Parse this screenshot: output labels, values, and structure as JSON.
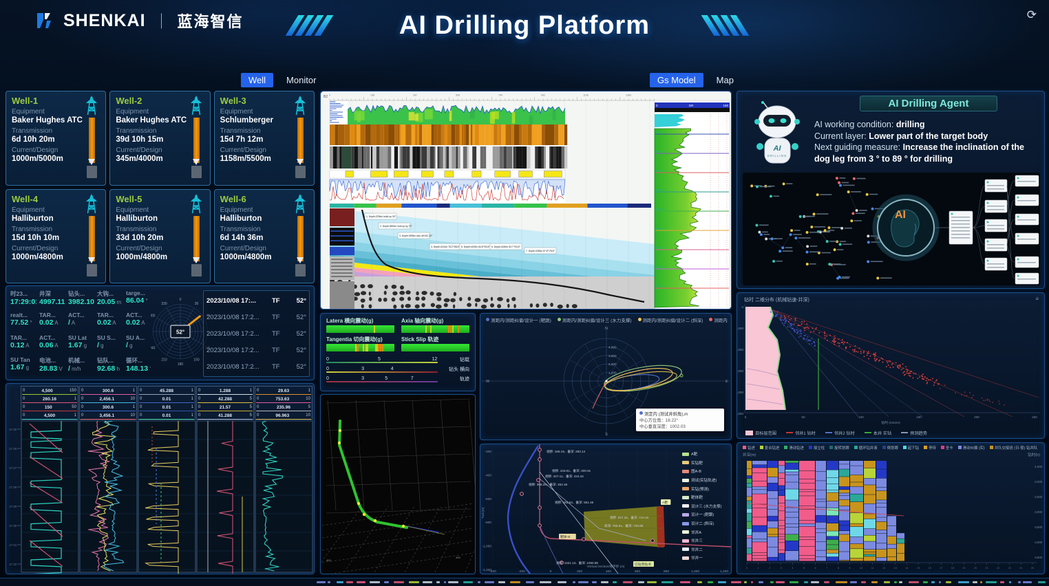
{
  "header": {
    "brand": "SHENKAI",
    "brand_cn": "蓝海智信",
    "title": "AI Drilling Platform",
    "refresh_glyph": "⟳"
  },
  "nav": {
    "left": [
      {
        "label": "Well",
        "active": true
      },
      {
        "label": "Monitor",
        "active": false
      }
    ],
    "right": [
      {
        "label": "Gs Model",
        "active": true
      },
      {
        "label": "Map",
        "active": false
      }
    ]
  },
  "well_labels": {
    "equipment": "Equipment",
    "transmission": "Transmission",
    "current_design": "Current/Design"
  },
  "wells": [
    {
      "name": "Well-1",
      "equipment": "Baker Hughes ATC",
      "transmission": "6d 10h 20m",
      "current_design": "1000m/5000m"
    },
    {
      "name": "Well-2",
      "equipment": "Baker Hughes ATC",
      "transmission": "39d 10h 15m",
      "current_design": "345m/4000m"
    },
    {
      "name": "Well-3",
      "equipment": "Schlumberger",
      "transmission": "15d 7h 12m",
      "current_design": "1158m/5500m"
    },
    {
      "name": "Well-4",
      "equipment": "Halliburton",
      "transmission": "15d 10h 10m",
      "current_design": "1000m/4800m"
    },
    {
      "name": "Well-5",
      "equipment": "Halliburton",
      "transmission": "33d 10h 20m",
      "current_design": "1000m/4800m"
    },
    {
      "name": "Well-6",
      "equipment": "Halliburton",
      "transmission": "6d 14h 36m",
      "current_design": "1000m/4800m"
    }
  ],
  "telemetry": {
    "rows": [
      [
        {
          "label": "时23...",
          "value": "17:29:01",
          "unit": ""
        },
        {
          "label": "井深",
          "value": "4997.11",
          "unit": ""
        },
        {
          "label": "钻头...",
          "value": "3982.10",
          "unit": ""
        },
        {
          "label": "大钩...",
          "value": "20.05",
          "unit": "m"
        },
        {
          "label": "targe...",
          "value": "86.04",
          "unit": "°"
        }
      ],
      [
        {
          "label": "realt...",
          "value": "77.52",
          "unit": "°"
        },
        {
          "label": "TAR...",
          "value": "0.02",
          "unit": "A"
        },
        {
          "label": "ACT...",
          "value": "/",
          "unit": "A"
        },
        {
          "label": "TAR...",
          "value": "0.02",
          "unit": "A"
        },
        {
          "label": "ACT...",
          "value": "0.02",
          "unit": "A"
        }
      ],
      [
        {
          "label": "TAR...",
          "value": "0.12",
          "unit": "A"
        },
        {
          "label": "ACT...",
          "value": "0.06",
          "unit": "A"
        },
        {
          "label": "SU Lat",
          "value": "1.67",
          "unit": "g"
        },
        {
          "label": "SU S...",
          "value": "/",
          "unit": "g"
        },
        {
          "label": "SU A...",
          "value": "/",
          "unit": "g"
        }
      ],
      [
        {
          "label": "SU Tan",
          "value": "1.67",
          "unit": "g"
        },
        {
          "label": "电池...",
          "value": "28.83",
          "unit": "V"
        },
        {
          "label": "机械...",
          "value": "/",
          "unit": "m/h"
        },
        {
          "label": "钻队...",
          "value": "92.68",
          "unit": "h"
        },
        {
          "label": "循环...",
          "value": "148.13",
          "unit": "'"
        }
      ]
    ]
  },
  "compass": {
    "value": "52°",
    "needle_deg": 52,
    "ticks": [
      "0",
      "30",
      "60",
      "90",
      "120",
      "150",
      "180",
      "210",
      "240",
      "270",
      "300",
      "330"
    ]
  },
  "tf_list": [
    {
      "time": "2023/10/08 17:...",
      "tf": "TF",
      "angle": "52°"
    },
    {
      "time": "2023/10/08 17:2...",
      "tf": "TF",
      "angle": "52°"
    },
    {
      "time": "2023/10/08 17:2...",
      "tf": "TF",
      "angle": "52°"
    },
    {
      "time": "2023/10/08 17:2...",
      "tf": "TF",
      "angle": "52°"
    },
    {
      "time": "2023/10/08 17:2...",
      "tf": "TF",
      "angle": "52°"
    }
  ],
  "vibration": {
    "bars": [
      {
        "label": "Latera 横向震动(g)",
        "ticks": 1
      },
      {
        "label": "Axia 轴向震动(g)",
        "ticks": 6
      },
      {
        "label": "Tangentia 切向震动(g)",
        "ticks": 14
      },
      {
        "label": "Stick Slip 轨迹",
        "ticks": 0
      }
    ],
    "scales": [
      {
        "ticks": [
          "0",
          "5",
          "12"
        ],
        "label": "钻铤",
        "grad": [
          "#1f8a5f",
          "#c8d13a"
        ]
      },
      {
        "ticks": [
          "0",
          "3",
          "4"
        ],
        "label": "钻头 横向",
        "grad": [
          "#c8d13a",
          "#8a1f2f"
        ]
      },
      {
        "ticks": [
          "0",
          "3",
          "5",
          "7"
        ],
        "label": "轨迹",
        "grad": [
          "#a03040",
          "#6a3a9a"
        ]
      }
    ]
  },
  "agent": {
    "title": "AI Drilling Agent",
    "robot_line1": "AI",
    "robot_line2": "DRILLING",
    "lines": [
      {
        "label": "AI working condition:",
        "value": "drilling"
      },
      {
        "label": "Current layer:",
        "value": "Lower part of the target body"
      },
      {
        "label": "Next guiding measure:",
        "value": "Increase the inclination of the dog leg from 3 ° to 89 ° for drilling"
      }
    ],
    "brain_label": "AI"
  },
  "geology": {
    "corner_label": "B2",
    "gr_header": "GR",
    "gr_min": "0",
    "gr_max": "150",
    "annotations": [
      "1. Depth:3756m build up 30°",
      "2. Depth:3833m hold up by 70°",
      "3. Depth:3935m kick off INC 22°",
      "4. Depth:4131m 78.2°/98.8°",
      "5. Depth:4192m 84.8°/93.8°",
      "6. Depth:4245m 83.7°/93.8°",
      "7. Depth:4335m 87.8°/78.8°"
    ],
    "tops": [
      {
        "label": "4117.17",
        "color": "#3a55b0"
      },
      {
        "label": "4205.17",
        "color": "#7a5fc0"
      },
      {
        "label": "4262.17",
        "color": "#d85f5f"
      },
      {
        "label": "4321.17",
        "color": "#2a9d8f"
      },
      {
        "label": "4388.17",
        "color": "#3fae4c"
      },
      {
        "label": "4446.17",
        "color": "#e0a030"
      },
      {
        "label": "4533.17",
        "color": "#d85f8f"
      },
      {
        "label": "4608.17",
        "color": "#c05fd8"
      },
      {
        "label": "4641.17",
        "color": "#e06060"
      }
    ]
  },
  "polar": {
    "legend": [
      {
        "color": "#5470c6",
        "label": "测距内/测距纠偏/设计一 (靶跟)"
      },
      {
        "color": "#91cc75",
        "label": "测距内/测距纠偏/设计三 (水力支撑)"
      },
      {
        "color": "#fac858",
        "label": "测距内/测距纠偏/设计二 (斜深)"
      },
      {
        "color": "#ee6666",
        "label": "测距内 ("
      }
    ],
    "radial_ticks": [
      "1,000",
      "2,000",
      "3,000",
      "4,000"
    ],
    "dirs": {
      "n": "N",
      "s": "S",
      "w": "W",
      "e": "E"
    },
    "tooltip": {
      "title": "测定内 (测试井斜角),m",
      "line1": "中心方位角：18.22°",
      "line2": "中心垂直深度：1002.03"
    }
  },
  "section": {
    "ylabel": "Tvd (m)",
    "xlabel": "Vertical Section/视平移 (m)",
    "yticks": [
      "-200",
      "-400",
      "-600",
      "-800",
      "-1,000",
      "-1,200"
    ],
    "xticks": [
      "-400",
      "-200",
      "0",
      "200",
      "400",
      "600",
      "800",
      "1,000",
      "1,200"
    ],
    "annotations": [
      "视移: 166.16、垂深: 283.14",
      "视移: 433.91、垂深: 400.91",
      "视移: 427.11、垂深: 424.44",
      "视移: 398.25、垂深: 452.46",
      "视移: 183.62、垂深: 551.46",
      "视移: 637.25、垂深: 710.10",
      "斜深: 755.51、垂深: 749.99",
      "视移: 1151.13、垂深: 1050.85"
    ],
    "badges": [
      "A靶",
      "靶体-B",
      "已钻完钻点"
    ],
    "legend": [
      {
        "color": "#b8e08c",
        "label": "A靶"
      },
      {
        "color": "#e8c87a",
        "label": "实钻靶"
      },
      {
        "color": "#e8897a",
        "label": "图A-B"
      },
      {
        "color": "#eef2e2",
        "label": "测试(实钻轨迹)"
      },
      {
        "color": "#f0a868",
        "label": "实钻(预测)"
      },
      {
        "color": "#d8e8c8",
        "label": "靶体靶"
      },
      {
        "color": "#f0f0f0",
        "label": "设计三 (水力支撑)"
      },
      {
        "color": "#b8a8e8",
        "label": "设计一 (靶跟)"
      },
      {
        "color": "#8898e8",
        "label": "设计二 (斜深)"
      },
      {
        "color": "#e8f0d8",
        "label": "邻井A"
      },
      {
        "color": "#f0b8d0",
        "label": "邻井三"
      },
      {
        "color": "#e8f0f8",
        "label": "邻井二"
      },
      {
        "color": "#f0d8d8",
        "label": "邻井一"
      }
    ]
  },
  "scatter": {
    "title": "钻时 二维分布 (机械钻速-井深)",
    "corner_glyph": "≡",
    "yticks": [
      "0",
      "-1,000",
      "-2,000",
      "-3,000",
      "-4,000",
      "-4,500"
    ],
    "xticks": [
      "0",
      "50",
      "100",
      "150",
      "200",
      "250"
    ],
    "xlabel": "钻时 (min/m)",
    "legend": [
      {
        "color": "#f8c6d4",
        "label": "目标层范围",
        "box": true
      },
      {
        "color": "#c23531",
        "label": "邻井1 钻时"
      },
      {
        "color": "#5470c6",
        "label": "邻井2 钻时"
      },
      {
        "color": "#3aa83a",
        "label": "本井 实钻"
      },
      {
        "color": "#8a94b8",
        "label": "预测趋势"
      }
    ]
  },
  "heatmap": {
    "left_label": "井深(m)",
    "right_label": "钻时(h)",
    "right_ticks": [
      "-1,500",
      "-2,000",
      "-2,500",
      "-3,000",
      "-3,500",
      "-4,000",
      "-4,500"
    ],
    "xtick_count": 26,
    "legend": [
      {
        "color": "#f25c8a",
        "label": "钻进"
      },
      {
        "color": "#b8d438",
        "label": "复合钻进"
      },
      {
        "color": "#2fae6c",
        "label": "滑动钻进"
      },
      {
        "color": "#2438c8",
        "label": "接立柱"
      },
      {
        "color": "#1f6a74",
        "label": "旋转划眼"
      },
      {
        "color": "#2aa898",
        "label": "循环钻井液"
      },
      {
        "color": "#27407f",
        "label": "倒划眼"
      },
      {
        "color": "#4fd8e8",
        "label": "起下钻"
      },
      {
        "color": "#d8a020",
        "label": "停待"
      },
      {
        "color": "#e8388a",
        "label": "坐卡"
      },
      {
        "color": "#7c8ae0",
        "label": "滑动纠偏 (实)"
      },
      {
        "color": "#c8941c",
        "label": "井队交接班 (日-夜)·钻井队"
      }
    ]
  },
  "logs": {
    "tracks": [
      {
        "rows": [
          {
            "color": "#9acd32",
            "min": "0",
            "mid": "4,500",
            "max": "150"
          },
          {
            "color": "#e05878",
            "min": "0",
            "mid": "260.16",
            "max": "1"
          },
          {
            "color": "#c23a3a",
            "min": "0",
            "mid": "150",
            "max": "50"
          },
          {
            "color": "#2ab5a5",
            "min": "0",
            "mid": "4,500",
            "max": "1"
          }
        ]
      },
      {
        "rows": [
          {
            "color": "#e060a0",
            "min": "0",
            "mid": "300.6",
            "max": "1"
          },
          {
            "color": "#45b8e8",
            "min": "0",
            "mid": "2,456.1",
            "max": "10"
          },
          {
            "color": "#3a68c8",
            "min": "0",
            "mid": "300.6",
            "max": "1"
          },
          {
            "color": "#d84848",
            "min": "0",
            "mid": "3,456.1",
            "max": "10"
          }
        ]
      },
      {
        "rows": [
          {
            "color": "#93a3b3",
            "min": "0",
            "mid": "45.288",
            "max": "1"
          },
          {
            "color": "#4565c5",
            "min": "0",
            "mid": "0.01",
            "max": "1"
          },
          {
            "color": "#2f55a5",
            "min": "0",
            "mid": "0.01",
            "max": "1"
          },
          {
            "color": "#35c085",
            "min": "0",
            "mid": "0.01",
            "max": "1"
          }
        ]
      },
      {
        "rows": [
          {
            "color": "#d5dde5",
            "min": "0",
            "mid": "1.288",
            "max": "1"
          },
          {
            "color": "#e0c040",
            "min": "0",
            "mid": "42.288",
            "max": "5"
          },
          {
            "color": "#c2ae2e",
            "min": "0",
            "mid": "21.57",
            "max": "5"
          },
          {
            "color": "#9aa2b2",
            "min": "0",
            "mid": "41.288",
            "max": "5"
          }
        ]
      },
      {
        "rows": [
          {
            "color": "#e09030",
            "min": "0",
            "mid": "29.63",
            "max": "1"
          },
          {
            "color": "#e060a0",
            "min": "0",
            "mid": "753.63",
            "max": "10"
          },
          {
            "color": "#b3bbc3",
            "min": "0",
            "mid": "235.96",
            "max": "5"
          },
          {
            "color": "#c8a030",
            "min": "0",
            "mid": "96.963",
            "max": "10"
          }
        ]
      }
    ]
  },
  "ticker_colors": [
    "#e05878",
    "#35c24a",
    "#45b8e8",
    "#e0a020",
    "#7c8ae0",
    "#2ab5a5",
    "#d0d8e0",
    "#f25c8a",
    "#b8d438"
  ]
}
